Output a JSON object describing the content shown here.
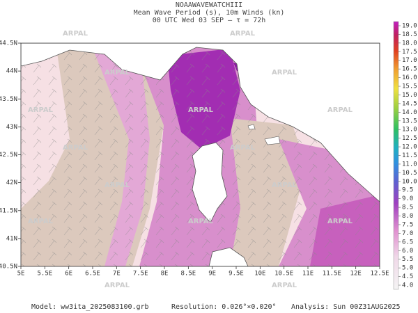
{
  "header": {
    "model_name": "NOAAWAVEWATCHIII",
    "field": "Mean Wave Period (s), 10m Winds (kn)",
    "time": "00 UTC Wed 03 SEP  –  τ = 72h"
  },
  "map": {
    "lon_labels": [
      "5E",
      "5.5E",
      "6E",
      "6.5E",
      "7E",
      "7.5E",
      "8E",
      "8.5E",
      "9E",
      "9.5E",
      "10E",
      "10.5E",
      "11E",
      "11.5E",
      "12E",
      "12.5E"
    ],
    "lat_labels": [
      "44.5N",
      "44N",
      "43.5N",
      "43N",
      "42.5N",
      "42N",
      "41.5N",
      "41N",
      "40.5N"
    ],
    "watermark": "ARPAL"
  },
  "colorbar": {
    "labels": [
      "19.0",
      "18.5",
      "18.0",
      "17.5",
      "17.0",
      "16.5",
      "16.0",
      "15.5",
      "15.0",
      "14.5",
      "14.0",
      "13.5",
      "13.0",
      "12.5",
      "12.0",
      "11.5",
      "11.0",
      "10.5",
      "10.0",
      "9.5",
      "9.0",
      "8.5",
      "8.0",
      "7.5",
      "7.0",
      "6.5",
      "6.0",
      "5.5",
      "5.0",
      "4.5",
      "4.0"
    ]
  },
  "footer": {
    "model": "Model: ww3ita_2025083100.grb",
    "resolution": "Resolution: 0.026°×0.020°",
    "analysis": "Analysis: Sun 00Z31AUG2025"
  }
}
